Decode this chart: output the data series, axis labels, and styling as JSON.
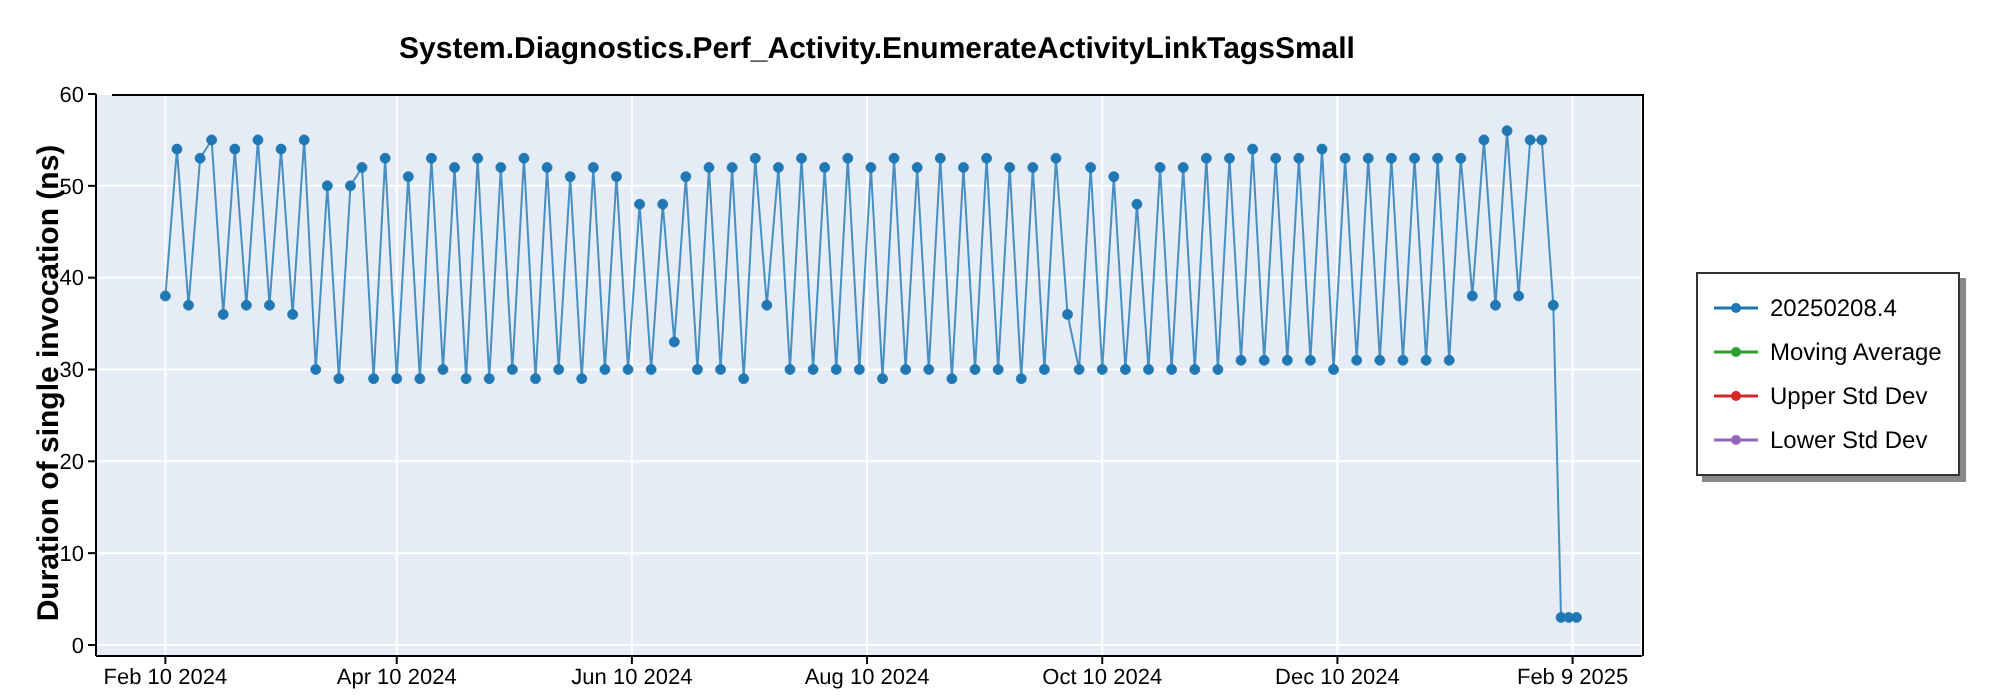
{
  "chart_data": {
    "type": "line",
    "title": "System.Diagnostics.Perf_Activity.EnumerateActivityLinkTagsSmall",
    "ylabel": "Duration of single invocation (ns)",
    "x": [
      "2024-02-10",
      "2024-02-13",
      "2024-02-16",
      "2024-02-19",
      "2024-02-22",
      "2024-02-25",
      "2024-02-28",
      "2024-03-02",
      "2024-03-05",
      "2024-03-08",
      "2024-03-11",
      "2024-03-14",
      "2024-03-17",
      "2024-03-20",
      "2024-03-23",
      "2024-03-26",
      "2024-03-29",
      "2024-04-01",
      "2024-04-04",
      "2024-04-07",
      "2024-04-10",
      "2024-04-13",
      "2024-04-16",
      "2024-04-19",
      "2024-04-22",
      "2024-04-25",
      "2024-04-28",
      "2024-05-01",
      "2024-05-04",
      "2024-05-07",
      "2024-05-10",
      "2024-05-13",
      "2024-05-16",
      "2024-05-19",
      "2024-05-22",
      "2024-05-25",
      "2024-05-28",
      "2024-05-31",
      "2024-06-03",
      "2024-06-06",
      "2024-06-09",
      "2024-06-12",
      "2024-06-15",
      "2024-06-18",
      "2024-06-21",
      "2024-06-24",
      "2024-06-27",
      "2024-06-30",
      "2024-07-03",
      "2024-07-06",
      "2024-07-09",
      "2024-07-12",
      "2024-07-15",
      "2024-07-18",
      "2024-07-21",
      "2024-07-24",
      "2024-07-27",
      "2024-07-30",
      "2024-08-02",
      "2024-08-05",
      "2024-08-08",
      "2024-08-11",
      "2024-08-14",
      "2024-08-17",
      "2024-08-20",
      "2024-08-23",
      "2024-08-26",
      "2024-08-29",
      "2024-09-01",
      "2024-09-04",
      "2024-09-07",
      "2024-09-10",
      "2024-09-13",
      "2024-09-16",
      "2024-09-19",
      "2024-09-22",
      "2024-09-25",
      "2024-09-28",
      "2024-10-01",
      "2024-10-04",
      "2024-10-07",
      "2024-10-10",
      "2024-10-13",
      "2024-10-16",
      "2024-10-19",
      "2024-10-22",
      "2024-10-25",
      "2024-10-28",
      "2024-10-31",
      "2024-11-03",
      "2024-11-06",
      "2024-11-09",
      "2024-11-12",
      "2024-11-15",
      "2024-11-18",
      "2024-11-21",
      "2024-11-24",
      "2024-11-27",
      "2024-11-30",
      "2024-12-03",
      "2024-12-06",
      "2024-12-09",
      "2024-12-12",
      "2024-12-15",
      "2024-12-18",
      "2024-12-21",
      "2024-12-24",
      "2024-12-27",
      "2024-12-30",
      "2025-01-02",
      "2025-01-05",
      "2025-01-08",
      "2025-01-11",
      "2025-01-14",
      "2025-01-17",
      "2025-01-20",
      "2025-01-23",
      "2025-01-26",
      "2025-01-29",
      "2025-02-01",
      "2025-02-04",
      "2025-02-06",
      "2025-02-08",
      "2025-02-10"
    ],
    "series": [
      {
        "name": "20250208.4",
        "color": "#1f77b4",
        "values": [
          38,
          54,
          37,
          53,
          55,
          36,
          54,
          37,
          55,
          37,
          54,
          36,
          55,
          30,
          50,
          29,
          50,
          52,
          29,
          53,
          29,
          51,
          29,
          53,
          30,
          52,
          29,
          53,
          29,
          52,
          30,
          53,
          29,
          52,
          30,
          51,
          29,
          52,
          30,
          51,
          30,
          48,
          30,
          48,
          33,
          51,
          30,
          52,
          30,
          52,
          29,
          53,
          37,
          52,
          30,
          53,
          30,
          52,
          30,
          53,
          30,
          52,
          29,
          53,
          30,
          52,
          30,
          53,
          29,
          52,
          30,
          53,
          30,
          52,
          29,
          52,
          30,
          53,
          36,
          30,
          52,
          30,
          51,
          30,
          48,
          30,
          52,
          30,
          52,
          30,
          53,
          30,
          53,
          31,
          54,
          31,
          53,
          31,
          53,
          31,
          54,
          30,
          53,
          31,
          53,
          31,
          53,
          31,
          53,
          31,
          53,
          31,
          53,
          38,
          55,
          37,
          56,
          38,
          55,
          55,
          37,
          3,
          3,
          3
        ]
      },
      {
        "name": "Moving Average",
        "color": "#2ca02c",
        "values": [
          null,
          null,
          null,
          null,
          null,
          null,
          null,
          null,
          null,
          null,
          null,
          null,
          null,
          null,
          null,
          null,
          null,
          null,
          null,
          null,
          null,
          null,
          null,
          null,
          null,
          null,
          null,
          null,
          null,
          null,
          null,
          null,
          null,
          null,
          null,
          null,
          null,
          null,
          null,
          null,
          null,
          null,
          null,
          null,
          null,
          null,
          null,
          null,
          null,
          null,
          null,
          null,
          null,
          null,
          null,
          null,
          null,
          null,
          null,
          null,
          null,
          null,
          null,
          null,
          null,
          null,
          null,
          null,
          null,
          null,
          null,
          null,
          null,
          null,
          null,
          null,
          null,
          null,
          null,
          null,
          null,
          null,
          null,
          null,
          null,
          null,
          null,
          null,
          null,
          null,
          null,
          null,
          null,
          null,
          null,
          null,
          null,
          null,
          null,
          null,
          null,
          null,
          null,
          null,
          null,
          null,
          null,
          null,
          null,
          null,
          null,
          null,
          null,
          null,
          null,
          null,
          null,
          null,
          null,
          null,
          null,
          null,
          null,
          null
        ]
      },
      {
        "name": "Upper Std Dev",
        "color": "#d62728",
        "values": [
          null,
          null,
          null,
          null,
          null,
          null,
          null,
          null,
          null,
          null,
          null,
          null,
          null,
          null,
          null,
          null,
          null,
          null,
          null,
          null,
          null,
          null,
          null,
          null,
          null,
          null,
          null,
          null,
          null,
          null,
          null,
          null,
          null,
          null,
          null,
          null,
          null,
          null,
          null,
          null,
          null,
          null,
          null,
          null,
          null,
          null,
          null,
          null,
          null,
          null,
          null,
          null,
          null,
          null,
          null,
          null,
          null,
          null,
          null,
          null,
          null,
          null,
          null,
          null,
          null,
          null,
          null,
          null,
          null,
          null,
          null,
          null,
          null,
          null,
          null,
          null,
          null,
          null,
          null,
          null,
          null,
          null,
          null,
          null,
          null,
          null,
          null,
          null,
          null,
          null,
          null,
          null,
          null,
          null,
          null,
          null,
          null,
          null,
          null,
          null,
          null,
          null,
          null,
          null,
          null,
          null,
          null,
          null,
          null,
          null,
          null,
          null,
          null,
          null,
          null,
          null,
          null,
          null,
          null,
          null,
          null,
          null,
          null,
          null
        ]
      },
      {
        "name": "Lower Std Dev",
        "color": "#9467bd",
        "values": [
          null,
          null,
          null,
          null,
          null,
          null,
          null,
          null,
          null,
          null,
          null,
          null,
          null,
          null,
          null,
          null,
          null,
          null,
          null,
          null,
          null,
          null,
          null,
          null,
          null,
          null,
          null,
          null,
          null,
          null,
          null,
          null,
          null,
          null,
          null,
          null,
          null,
          null,
          null,
          null,
          null,
          null,
          null,
          null,
          null,
          null,
          null,
          null,
          null,
          null,
          null,
          null,
          null,
          null,
          null,
          null,
          null,
          null,
          null,
          null,
          null,
          null,
          null,
          null,
          null,
          null,
          null,
          null,
          null,
          null,
          null,
          null,
          null,
          null,
          null,
          null,
          null,
          null,
          null,
          null,
          null,
          null,
          null,
          null,
          null,
          null,
          null,
          null,
          null,
          null,
          null,
          null,
          null,
          null,
          null,
          null,
          null,
          null,
          null,
          null,
          null,
          null,
          null,
          null,
          null,
          null,
          null,
          null,
          null,
          null,
          null,
          null,
          null,
          null,
          null,
          null,
          null,
          null,
          null,
          null,
          null,
          null,
          null,
          null
        ]
      }
    ],
    "xlim": [
      "2024-01-23",
      "2025-02-27"
    ],
    "xticks": [
      {
        "value": "2024-02-10",
        "label": "Feb 10 2024"
      },
      {
        "value": "2024-04-10",
        "label": "Apr 10 2024"
      },
      {
        "value": "2024-06-10",
        "label": "Jun 10 2024"
      },
      {
        "value": "2024-08-10",
        "label": "Aug 10 2024"
      },
      {
        "value": "2024-10-10",
        "label": "Oct 10 2024"
      },
      {
        "value": "2024-12-10",
        "label": "Dec 10 2024"
      },
      {
        "value": "2025-02-09",
        "label": "Feb 9 2025"
      }
    ],
    "ylim": [
      -1.2,
      60
    ],
    "yticks": [
      0,
      10,
      20,
      30,
      40,
      50,
      60
    ],
    "grid": true,
    "legend": "right",
    "marker": "circle",
    "line_style": "solid"
  }
}
